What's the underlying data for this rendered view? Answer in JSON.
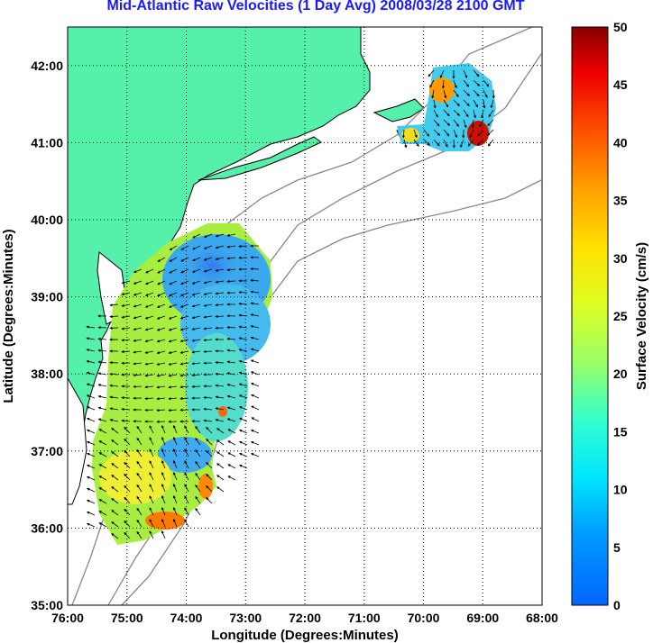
{
  "title": "Mid-Atlantic Raw Velocities (1 Day Avg) 2008/03/28 2100 GMT",
  "map": {
    "x_axis": {
      "label": "Longitude (Degrees:Minutes)",
      "ticks": [
        "76:00",
        "75:00",
        "74:00",
        "73:00",
        "72:00",
        "71:00",
        "70:00",
        "69:00",
        "68:00"
      ]
    },
    "y_axis": {
      "label": "Latitude (Degrees:Minutes)",
      "ticks": [
        "35:00",
        "36:00",
        "37:00",
        "38:00",
        "39:00",
        "40:00",
        "41:00",
        "42:00"
      ]
    },
    "lon_range": [
      -76,
      -68
    ],
    "lat_range": [
      35,
      42.5
    ],
    "land_color": "#55f0aa",
    "gridlines": "dotted"
  },
  "colorbar": {
    "label": "Surface Velocity (cm/s)",
    "ticks": [
      "0",
      "5",
      "10",
      "15",
      "20",
      "25",
      "30",
      "35",
      "40",
      "45",
      "50"
    ],
    "range": [
      0,
      50
    ],
    "colormap": "jet"
  }
}
